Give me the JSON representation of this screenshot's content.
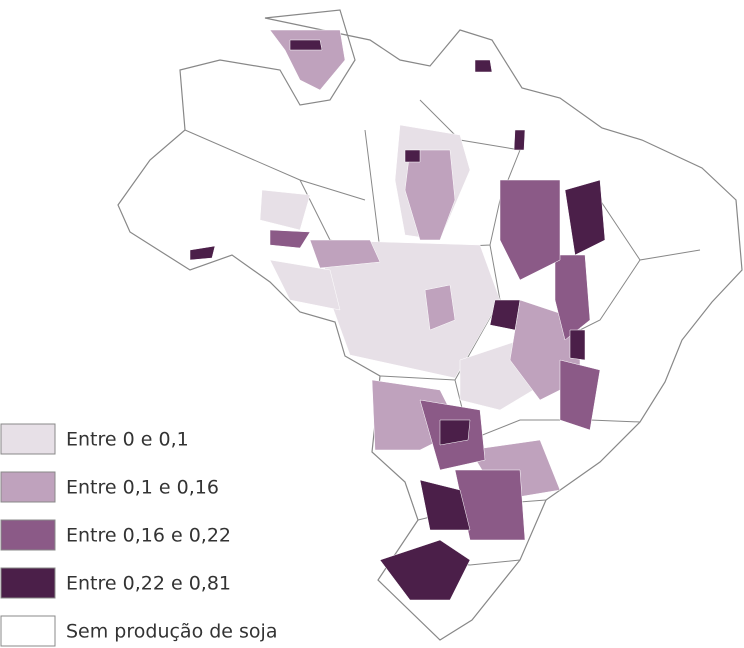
{
  "legend": {
    "items": [
      {
        "label": "Entre 0 e 0,1",
        "color": "#e7e0e7"
      },
      {
        "label": "Entre 0,1 e 0,16",
        "color": "#bfa2bd"
      },
      {
        "label": "Entre 0,16 e 0,22",
        "color": "#8b5a87"
      },
      {
        "label": "Entre 0,22 e 0,81",
        "color": "#4b1f49"
      },
      {
        "label": "Sem produção de soja",
        "color": "#ffffff"
      }
    ]
  }
}
